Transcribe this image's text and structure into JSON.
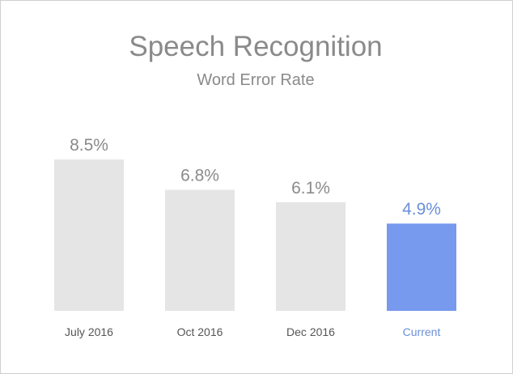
{
  "chart_data": {
    "type": "bar",
    "title": "Speech Recognition",
    "subtitle": "Word Error Rate",
    "categories": [
      "July 2016",
      "Oct 2016",
      "Dec 2016",
      "Current"
    ],
    "values": [
      8.5,
      6.8,
      6.1,
      4.9
    ],
    "value_labels": [
      "8.5%",
      "6.8%",
      "6.1%",
      "4.9%"
    ],
    "ylim": [
      0,
      8.5
    ],
    "grid": false,
    "colors": {
      "bar": "#e5e5e5",
      "highlight_bar": "#7799ee",
      "text": "#8a8a8a",
      "highlight_text": "#6b8fd9"
    },
    "highlight_index": 3
  }
}
